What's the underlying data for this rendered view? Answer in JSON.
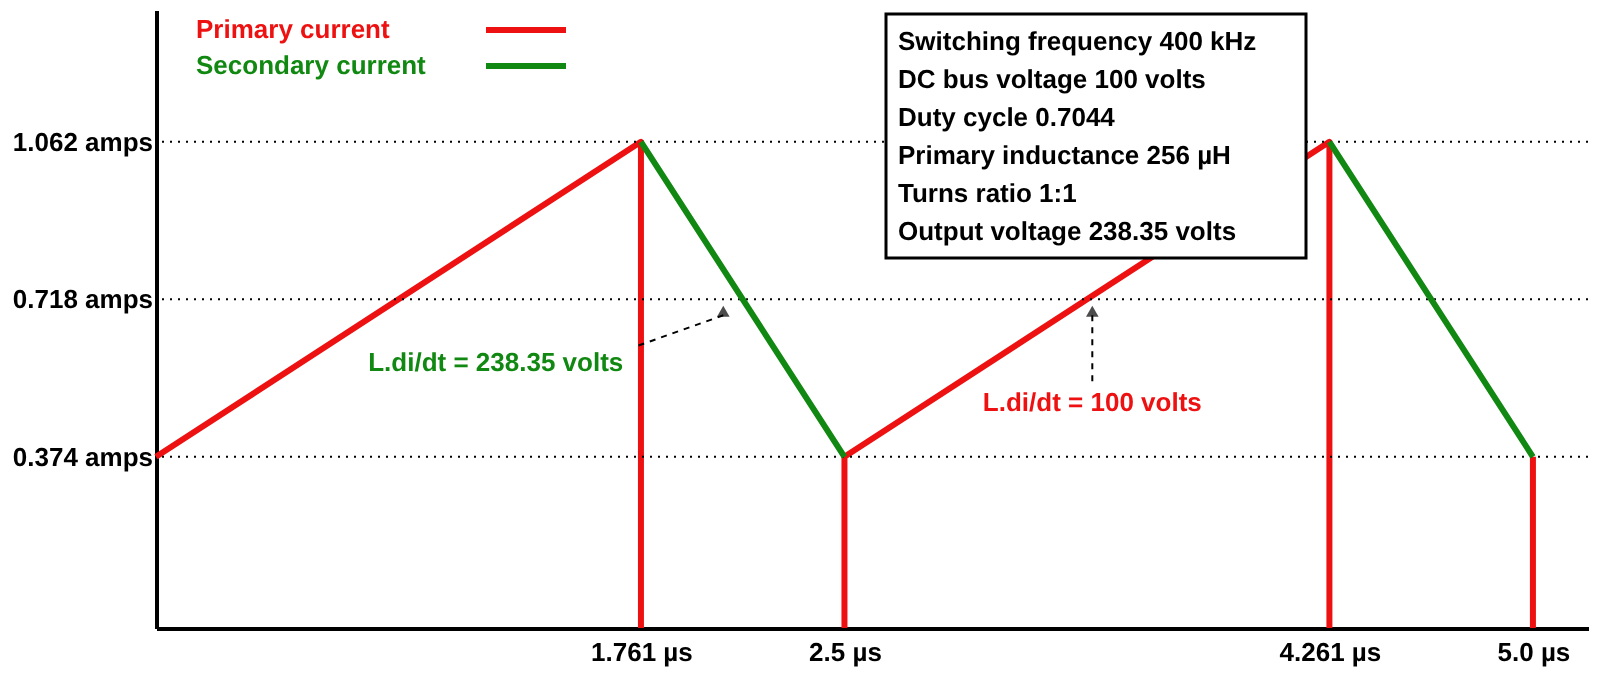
{
  "chart_data": {
    "type": "line",
    "series": [
      {
        "name": "Primary current",
        "color": "#ee1111",
        "x": [
          0,
          1.761,
          1.761,
          null,
          2.5,
          2.5,
          4.261,
          4.261,
          null,
          5.0,
          5.0
        ],
        "values": [
          0.374,
          1.062,
          0,
          null,
          0,
          0.374,
          1.062,
          0,
          null,
          0.374,
          0
        ]
      },
      {
        "name": "Secondary current",
        "color": "#118811",
        "x": [
          1.761,
          2.5,
          null,
          4.261,
          5.0
        ],
        "values": [
          1.062,
          0.374,
          null,
          1.062,
          0.374
        ]
      }
    ],
    "xlim": [
      0,
      5.2
    ],
    "ylim": [
      0,
      1.35
    ],
    "xticks": [
      {
        "value": 1.761,
        "label": "1.761 µs"
      },
      {
        "value": 2.5,
        "label": "2.5 µs"
      },
      {
        "value": 4.261,
        "label": "4.261 µs"
      },
      {
        "value": 5.0,
        "label": "5.0 µs"
      }
    ],
    "yticks": [
      {
        "value": 0.374,
        "label": "0.374 amps"
      },
      {
        "value": 0.718,
        "label": "0.718 amps"
      },
      {
        "value": 1.062,
        "label": "1.062 amps"
      }
    ],
    "ref_lines": [
      {
        "axis": "y",
        "value": 1.062,
        "line_style": "dotted",
        "color": "#000000"
      },
      {
        "axis": "y",
        "value": 0.718,
        "line_style": "dotted",
        "color": "#000000"
      },
      {
        "axis": "y",
        "value": 0.374,
        "line_style": "dotted",
        "color": "#000000"
      }
    ],
    "annotations": [
      {
        "text": "L.di/dt = 238.35 volts",
        "x": 2.06,
        "y": 0.718
      },
      {
        "text": "L.di/dt = 100 volts",
        "x": 3.4,
        "y": 0.718
      },
      "Switching frequency 400 kHz",
      "DC bus voltage 100 volts",
      "Duty cycle 0.7044",
      "Primary inductance 256 µH",
      "Turns ratio 1:1",
      "Output voltage 238.35 volts"
    ],
    "legend": "top left",
    "grid": false,
    "line_style": "solid",
    "marker": "none"
  }
}
